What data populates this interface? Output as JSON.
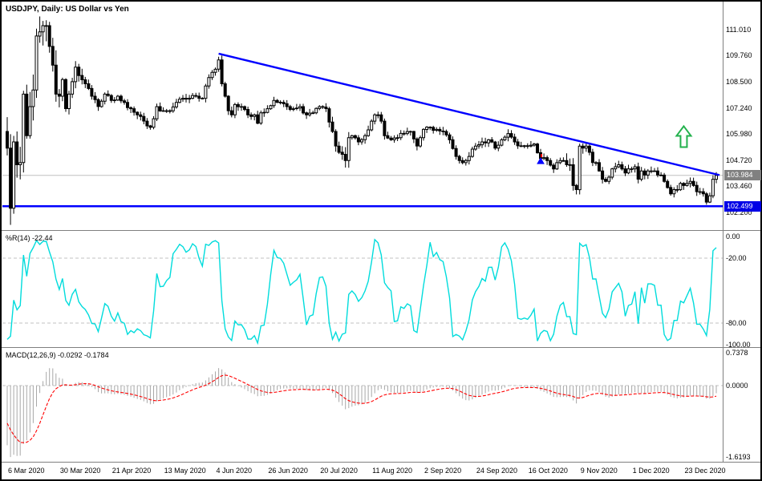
{
  "window": {
    "title": "USDJPY, Daily:  US Dollar vs Yen"
  },
  "colors": {
    "background": "#ffffff",
    "frame": "#000000",
    "panel_divider": "#808080",
    "text": "#000000",
    "bull_candle_fill": "#ffffff",
    "bear_candle_fill": "#000000",
    "candle_outline": "#000000",
    "trendline_blue": "#0000ff",
    "level_line_blue": "#0000ff",
    "level_badge_bg": "#0000e6",
    "current_badge_bg": "#808080",
    "current_price_line": "#c0c0c0",
    "dashed_grid": "#c0c0c0",
    "percent_r_cyan": "#00dcdc",
    "macd_histogram_silver": "#a8a8a8",
    "macd_signal_red": "#ff0000",
    "arrow_green": "#22b14c",
    "marker_blue": "#0000ff",
    "marker_red": "#ff0000"
  },
  "chart_data": [
    {
      "type": "candlestick",
      "panel": "main-price",
      "title": "USDJPY, Daily:  US Dollar vs Yen",
      "symbol": "USDJPY",
      "timeframe": "Daily",
      "description": "US Dollar vs Yen",
      "bar_count": 219,
      "y_tick_labels": [
        "111.010",
        "109.760",
        "108.500",
        "107.240",
        "105.980",
        "104.720",
        "103.460",
        "102.200"
      ],
      "y_range": [
        101.35,
        112.32
      ],
      "x_axis": {
        "labels": [
          "6 Mar 2020",
          "30 Mar 2020",
          "21 Apr 2020",
          "13 May 2020",
          "4 Jun 2020",
          "26 Jun 2020",
          "20 Jul 2020",
          "11 Aug 2020",
          "2 Sep 2020",
          "24 Sep 2020",
          "16 Oct 2020",
          "9 Nov 2020",
          "1 Dec 2020",
          "23 Dec 2020"
        ],
        "bars_per_label": 16,
        "first_label_index": 0
      },
      "current_price_label": "103.984",
      "level": {
        "price": 102.499,
        "label": "102.499"
      },
      "trendline": {
        "start_index": 65,
        "start_price": 109.85,
        "end_index": 219,
        "end_price": 104.0
      },
      "annotations": [
        {
          "type": "block-arrow-up",
          "name": "green-up-arrow",
          "index": 208,
          "price": 105.35,
          "color_key": "arrow_green"
        },
        {
          "type": "small-marker",
          "name": "blue-red-marker",
          "index": 164,
          "price": 104.55,
          "color_key": "marker_blue",
          "accent_key": "marker_red"
        }
      ],
      "warmup_closes": [
        110.3,
        110.5,
        110.8,
        111.0,
        111.2,
        111.3,
        111.5,
        111.7,
        111.8,
        112.0,
        112.1,
        112.2,
        112.1,
        111.9,
        111.5,
        111.0,
        110.3,
        109.6,
        108.9,
        108.1,
        107.4,
        106.8,
        106.3,
        105.9,
        105.7,
        105.5
      ],
      "close_keyframes": [
        [
          0,
          105.3
        ],
        [
          1,
          102.4
        ],
        [
          2,
          105.6
        ],
        [
          3,
          104.5
        ],
        [
          4,
          104.6
        ],
        [
          5,
          107.9
        ],
        [
          6,
          105.9
        ],
        [
          7,
          107.3
        ],
        [
          8,
          108.1
        ],
        [
          9,
          110.7
        ],
        [
          10,
          110.9
        ],
        [
          11,
          111.2
        ],
        [
          12,
          111.2
        ],
        [
          13,
          110.2
        ],
        [
          14,
          109.3
        ],
        [
          15,
          107.9
        ],
        [
          16,
          107.8
        ],
        [
          17,
          108.6
        ],
        [
          18,
          107.2
        ],
        [
          19,
          107.9
        ],
        [
          20,
          108.5
        ],
        [
          21,
          109.2
        ],
        [
          22,
          108.8
        ],
        [
          24,
          108.4
        ],
        [
          26,
          107.8
        ],
        [
          28,
          107.3
        ],
        [
          30,
          107.9
        ],
        [
          32,
          107.6
        ],
        [
          34,
          107.8
        ],
        [
          36,
          107.5
        ],
        [
          38,
          107.2
        ],
        [
          40,
          106.9
        ],
        [
          42,
          106.6
        ],
        [
          44,
          106.3
        ],
        [
          46,
          107.3
        ],
        [
          48,
          107.1
        ],
        [
          50,
          107.1
        ],
        [
          52,
          107.5
        ],
        [
          54,
          107.7
        ],
        [
          56,
          107.7
        ],
        [
          58,
          107.8
        ],
        [
          60,
          107.7
        ],
        [
          62,
          108.7
        ],
        [
          64,
          109.1
        ],
        [
          65,
          109.55
        ],
        [
          66,
          108.4
        ],
        [
          67,
          107.8
        ],
        [
          68,
          107.1
        ],
        [
          69,
          106.9
        ],
        [
          70,
          107.4
        ],
        [
          72,
          107.3
        ],
        [
          74,
          106.9
        ],
        [
          76,
          106.9
        ],
        [
          77,
          106.5
        ],
        [
          78,
          107.0
        ],
        [
          80,
          107.2
        ],
        [
          82,
          107.6
        ],
        [
          84,
          107.5
        ],
        [
          86,
          107.3
        ],
        [
          88,
          107.2
        ],
        [
          90,
          107.3
        ],
        [
          92,
          106.9
        ],
        [
          94,
          107.0
        ],
        [
          96,
          107.3
        ],
        [
          98,
          107.2
        ],
        [
          100,
          106.1
        ],
        [
          101,
          105.4
        ],
        [
          102,
          105.1
        ],
        [
          103,
          105.0
        ],
        [
          104,
          104.7
        ],
        [
          105,
          105.8
        ],
        [
          106,
          105.9
        ],
        [
          108,
          105.6
        ],
        [
          110,
          105.9
        ],
        [
          112,
          106.6
        ],
        [
          113,
          106.9
        ],
        [
          114,
          106.9
        ],
        [
          115,
          106.6
        ],
        [
          116,
          105.9
        ],
        [
          118,
          105.7
        ],
        [
          120,
          105.8
        ],
        [
          122,
          106.0
        ],
        [
          124,
          106.1
        ],
        [
          126,
          105.4
        ],
        [
          128,
          106.2
        ],
        [
          130,
          106.3
        ],
        [
          132,
          106.2
        ],
        [
          134,
          106.1
        ],
        [
          136,
          105.7
        ],
        [
          138,
          104.9
        ],
        [
          140,
          104.6
        ],
        [
          141,
          104.7
        ],
        [
          142,
          104.9
        ],
        [
          144,
          105.4
        ],
        [
          146,
          105.6
        ],
        [
          148,
          105.7
        ],
        [
          150,
          105.3
        ],
        [
          152,
          105.7
        ],
        [
          154,
          106.0
        ],
        [
          156,
          105.6
        ],
        [
          158,
          105.4
        ],
        [
          160,
          105.4
        ],
        [
          162,
          105.5
        ],
        [
          164,
          104.8
        ],
        [
          166,
          104.7
        ],
        [
          168,
          104.3
        ],
        [
          169,
          104.6
        ],
        [
          170,
          104.7
        ],
        [
          171,
          104.7
        ],
        [
          172,
          104.5
        ],
        [
          173,
          104.5
        ],
        [
          174,
          103.5
        ],
        [
          175,
          103.3
        ],
        [
          176,
          105.4
        ],
        [
          177,
          105.3
        ],
        [
          178,
          105.4
        ],
        [
          179,
          105.1
        ],
        [
          180,
          104.6
        ],
        [
          181,
          104.6
        ],
        [
          182,
          104.2
        ],
        [
          183,
          103.8
        ],
        [
          184,
          103.7
        ],
        [
          185,
          103.9
        ],
        [
          186,
          104.3
        ],
        [
          187,
          104.4
        ],
        [
          188,
          104.5
        ],
        [
          189,
          104.3
        ],
        [
          190,
          104.1
        ],
        [
          191,
          104.3
        ],
        [
          192,
          104.3
        ],
        [
          193,
          104.4
        ],
        [
          194,
          103.8
        ],
        [
          195,
          104.2
        ],
        [
          196,
          104.0
        ],
        [
          197,
          104.2
        ],
        [
          198,
          104.2
        ],
        [
          199,
          104.2
        ],
        [
          200,
          104.0
        ],
        [
          201,
          104.0
        ],
        [
          202,
          103.7
        ],
        [
          203,
          103.4
        ],
        [
          204,
          103.1
        ],
        [
          205,
          103.3
        ],
        [
          206,
          103.3
        ],
        [
          207,
          103.6
        ],
        [
          208,
          103.5
        ],
        [
          209,
          103.6
        ],
        [
          210,
          103.7
        ],
        [
          211,
          103.5
        ],
        [
          212,
          103.2
        ],
        [
          213,
          103.2
        ],
        [
          214,
          103.1
        ],
        [
          215,
          102.7
        ],
        [
          216,
          103.0
        ],
        [
          217,
          103.8
        ],
        [
          218,
          103.98
        ]
      ]
    },
    {
      "type": "line",
      "panel": "williams-percent-r",
      "indicator": "%R(14)",
      "label": "%R(14) -22.44",
      "period": 14,
      "current_value": -22.44,
      "y_tick_labels": [
        "0.00",
        "-20.00",
        "-80.00",
        "-100.00"
      ],
      "y_range": [
        0,
        -100
      ],
      "levels": [
        -20,
        -80
      ],
      "line_color": "cyan",
      "derivation": "Williams %R(14) computed from the candlestick highs/lows/closes above"
    },
    {
      "type": "macd",
      "panel": "macd",
      "indicator": "MACD(12,26,9)",
      "label": "MACD(12,26,9) -0.0292 -0.1784",
      "parameters": [
        12,
        26,
        9
      ],
      "macd_value": -0.0292,
      "signal_value": -0.1784,
      "y_tick_labels": [
        "0.7378",
        "0.0000",
        "-1.6193"
      ],
      "y_range": [
        0.81,
        -1.68
      ],
      "histogram_color": "silver",
      "signal_style": "red dashed",
      "derivation": "MACD(12,26,9) computed from the candlestick closes above"
    }
  ]
}
